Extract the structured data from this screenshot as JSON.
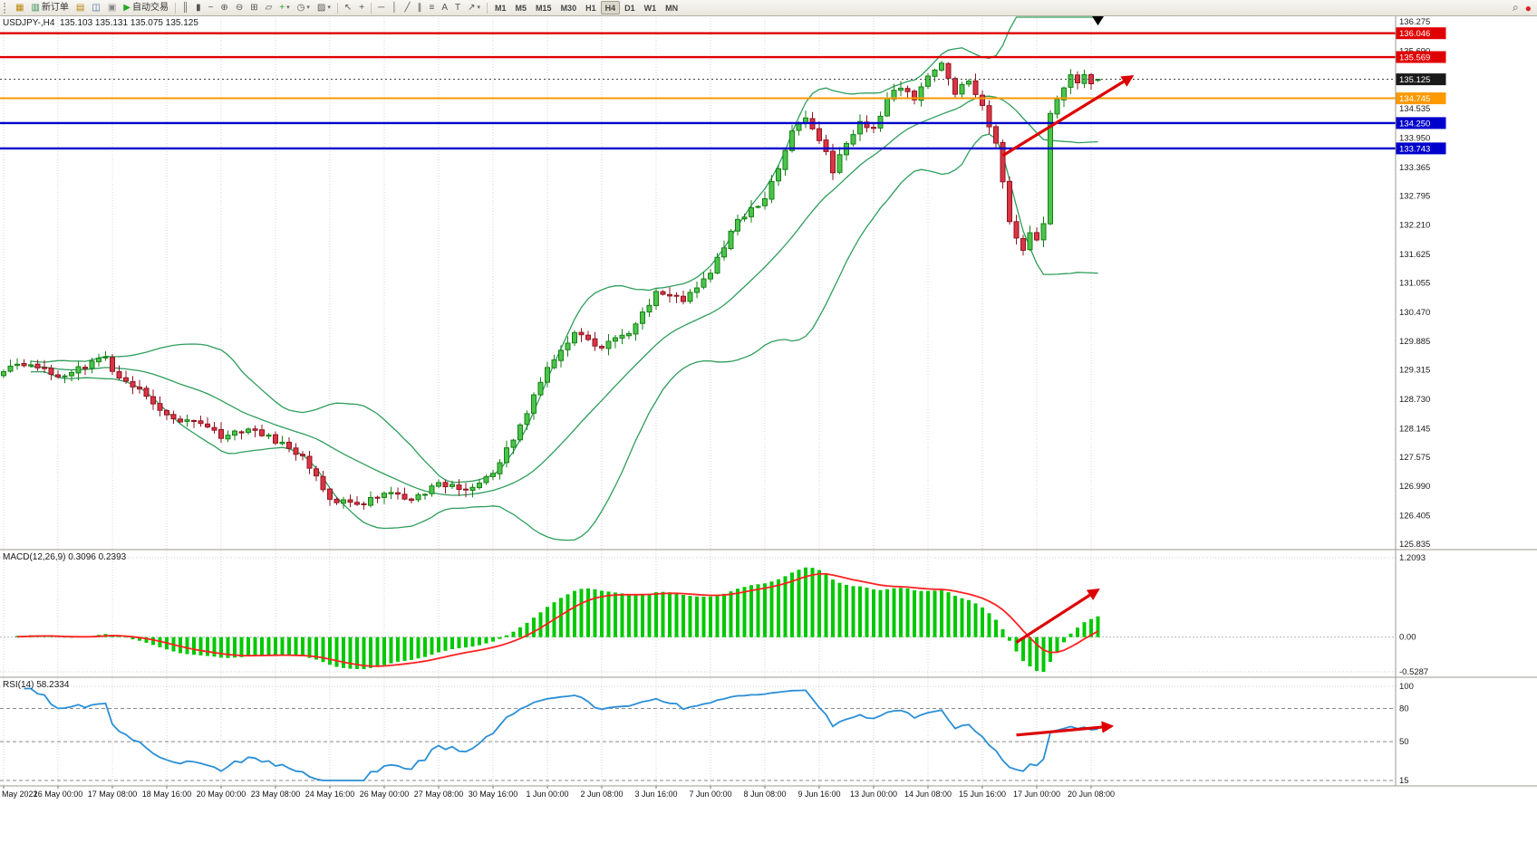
{
  "toolbar": {
    "buttons": [
      {
        "name": "new-chart",
        "glyph": "▦",
        "color": "#b8860b"
      },
      {
        "name": "new-order",
        "glyph": "▥",
        "label": "新订单",
        "color": "#2e8b57"
      },
      {
        "name": "market-watch",
        "glyph": "▤",
        "color": "#b8860b"
      },
      {
        "name": "navigator",
        "glyph": "◫",
        "color": "#4169aa"
      },
      {
        "name": "terminal",
        "glyph": "▣",
        "color": "#888888"
      },
      {
        "name": "autotrading",
        "glyph": "▶",
        "label": "自动交易",
        "color": "#22aa22"
      },
      {
        "name": "sep-1",
        "sep": true
      },
      {
        "name": "bar-chart",
        "glyph": "║"
      },
      {
        "name": "candlestick-chart",
        "glyph": "▮"
      },
      {
        "name": "line-chart",
        "glyph": "~"
      },
      {
        "name": "zoom-in",
        "glyph": "⊕"
      },
      {
        "name": "zoom-out",
        "glyph": "⊖"
      },
      {
        "name": "tile-windows",
        "glyph": "⊞"
      },
      {
        "name": "arrange-windows",
        "glyph": "▱"
      },
      {
        "name": "indicators",
        "glyph": "+",
        "color": "#22aa22",
        "caret": true
      },
      {
        "name": "periods",
        "glyph": "◷",
        "caret": true
      },
      {
        "name": "templates",
        "glyph": "▨",
        "caret": true
      },
      {
        "name": "sep-2",
        "sep": true
      },
      {
        "name": "cursor",
        "glyph": "↖"
      },
      {
        "name": "crosshair",
        "glyph": "+"
      },
      {
        "name": "sep-3",
        "sep": true
      },
      {
        "name": "horizontal-line",
        "glyph": "─"
      },
      {
        "name": "vertical-line",
        "glyph": "│"
      },
      {
        "name": "trendline",
        "glyph": "╱"
      },
      {
        "name": "equidistant-channel",
        "glyph": "∥"
      },
      {
        "name": "fibonacci",
        "glyph": "≡"
      },
      {
        "name": "text",
        "glyph": "A"
      },
      {
        "name": "text-label",
        "glyph": "T"
      },
      {
        "name": "arrows-tool",
        "glyph": "↗",
        "caret": true
      },
      {
        "name": "sep-4",
        "sep": true
      }
    ],
    "timeframes": [
      "M1",
      "M5",
      "M15",
      "M30",
      "H1",
      "H4",
      "D1",
      "W1",
      "MN"
    ],
    "active_timeframe": "H4",
    "right_icons": [
      {
        "name": "search",
        "glyph": "⌕",
        "color": "#555555"
      },
      {
        "name": "community",
        "glyph": "●",
        "color": "#dd2222"
      }
    ]
  },
  "chart": {
    "title_ohlc": "USDJPY-,H4  135.103 135.131 135.075 135.125",
    "macd_label": "MACD(12,26,9) 0.3096 0.2393",
    "rsi_label": "RSI(14) 58.2334",
    "price_axis": {
      "ticks": [
        "136.275",
        "135.690",
        "134.535",
        "133.950",
        "133.365",
        "132.795",
        "132.210",
        "131.625",
        "131.055",
        "130.470",
        "129.885",
        "129.315",
        "128.730",
        "128.145",
        "127.575",
        "126.990",
        "126.405",
        "125.835"
      ],
      "boxes": [
        {
          "label": "136.046",
          "color": "#e00000",
          "text": "#ffffff"
        },
        {
          "label": "135.569",
          "color": "#e00000",
          "text": "#ffffff"
        },
        {
          "label": "135.125",
          "color": "#1a1a1a",
          "text": "#ffffff",
          "role": "current-price-tag"
        },
        {
          "label": "134.745",
          "color": "#ff9900",
          "text": "#ffffff"
        },
        {
          "label": "134.250",
          "color": "#0000cc",
          "text": "#ffffff"
        },
        {
          "label": "133.743",
          "color": "#0000cc",
          "text": "#ffffff"
        }
      ]
    },
    "hlines": [
      {
        "price": 136.046,
        "color": "#e00000",
        "width": 2.4
      },
      {
        "price": 135.569,
        "color": "#e00000",
        "width": 2.4
      },
      {
        "price": 134.745,
        "color": "#ff9900",
        "width": 2
      },
      {
        "price": 134.25,
        "color": "#0000cc",
        "width": 2.4
      },
      {
        "price": 133.743,
        "color": "#0000cc",
        "width": 2.4
      }
    ],
    "macd_scale": [
      "1.2093",
      "0.00",
      "-0.5287"
    ],
    "rsi_scale": [
      "100",
      "80",
      "50",
      "15"
    ]
  },
  "chart_data": {
    "type": "candlestick",
    "symbol": "USDJPY-",
    "period": "H4",
    "current_ohlc": {
      "open": 135.103,
      "high": 135.131,
      "low": 135.075,
      "close": 135.125
    },
    "price_range": {
      "min": 125.835,
      "max": 136.275
    },
    "n_candles": 162,
    "close_anchors": [
      [
        0,
        129.3
      ],
      [
        4,
        129.45
      ],
      [
        8,
        129.2
      ],
      [
        12,
        129.4
      ],
      [
        15,
        129.58
      ],
      [
        16,
        129.3
      ],
      [
        20,
        128.9
      ],
      [
        24,
        128.4
      ],
      [
        28,
        128.25
      ],
      [
        32,
        128.0
      ],
      [
        36,
        128.15
      ],
      [
        40,
        127.9
      ],
      [
        44,
        127.6
      ],
      [
        48,
        126.75
      ],
      [
        52,
        126.6
      ],
      [
        56,
        126.9
      ],
      [
        60,
        126.7
      ],
      [
        64,
        127.05
      ],
      [
        68,
        126.9
      ],
      [
        72,
        127.25
      ],
      [
        76,
        128.2
      ],
      [
        80,
        129.4
      ],
      [
        84,
        130.05
      ],
      [
        88,
        129.75
      ],
      [
        92,
        130.1
      ],
      [
        96,
        130.85
      ],
      [
        100,
        130.7
      ],
      [
        104,
        131.3
      ],
      [
        108,
        132.3
      ],
      [
        112,
        132.75
      ],
      [
        114,
        133.3
      ],
      [
        116,
        134.05
      ],
      [
        118,
        134.4
      ],
      [
        120,
        133.95
      ],
      [
        122,
        133.3
      ],
      [
        124,
        133.85
      ],
      [
        126,
        134.3
      ],
      [
        128,
        134.1
      ],
      [
        130,
        134.7
      ],
      [
        132,
        135.0
      ],
      [
        134,
        134.7
      ],
      [
        136,
        135.2
      ],
      [
        138,
        135.4
      ],
      [
        140,
        134.85
      ],
      [
        142,
        135.1
      ],
      [
        144,
        134.55
      ],
      [
        146,
        133.9
      ],
      [
        148,
        132.3
      ],
      [
        150,
        131.7
      ],
      [
        151,
        132.1
      ],
      [
        152,
        131.9
      ],
      [
        153,
        132.2
      ],
      [
        154,
        134.5
      ],
      [
        155,
        134.7
      ],
      [
        156,
        134.95
      ],
      [
        157,
        135.25
      ],
      [
        158,
        135.0
      ],
      [
        159,
        135.2
      ],
      [
        160,
        135.0
      ],
      [
        161,
        135.125
      ]
    ],
    "indicators": {
      "bollinger_bands": {
        "period": 20,
        "deviation": 2,
        "color": "#2e9e5b"
      },
      "macd": {
        "fast": 12,
        "slow": 26,
        "signal": 9,
        "main_value": 0.3096,
        "signal_value": 0.2393,
        "histogram_color": "#00c800",
        "signal_color": "#ff2020",
        "scale_max": 1.2093,
        "scale_min": -0.5287
      },
      "rsi": {
        "period": 14,
        "value": 58.2334,
        "color": "#2b8fd6",
        "levels": [
          80,
          50
        ],
        "scale_max": 100,
        "scale_min": 15
      }
    },
    "time_labels": [
      "May 2022",
      "16 May 00:00",
      "17 May 08:00",
      "18 May 16:00",
      "20 May 00:00",
      "23 May 08:00",
      "24 May 16:00",
      "26 May 00:00",
      "27 May 08:00",
      "30 May 16:00",
      "1 Jun 00:00",
      "2 Jun 08:00",
      "3 Jun 16:00",
      "7 Jun 00:00",
      "8 Jun 08:00",
      "9 Jun 16:00",
      "13 Jun 00:00",
      "14 Jun 08:00",
      "15 Jun 16:00",
      "17 Jun 00:00",
      "20 Jun 08:00"
    ],
    "label_every_n_candles": 8,
    "annotations": [
      {
        "pane": "main",
        "type": "trend-arrow",
        "from_index": 147,
        "from_price": 133.6,
        "to_index": 166,
        "to_price": 135.18,
        "color": "#dd0000"
      },
      {
        "pane": "main",
        "type": "down-marker",
        "index": 161,
        "price": 136.2,
        "color": "#000000"
      },
      {
        "pane": "macd",
        "type": "trend-arrow",
        "from_index": 149,
        "from_value": -0.08,
        "to_index": 161,
        "to_value": 0.72,
        "color": "#dd0000"
      },
      {
        "pane": "rsi",
        "type": "trend-arrow",
        "from_index": 149,
        "from_value": 56,
        "to_index": 163,
        "to_value": 64,
        "color": "#dd0000"
      }
    ]
  }
}
